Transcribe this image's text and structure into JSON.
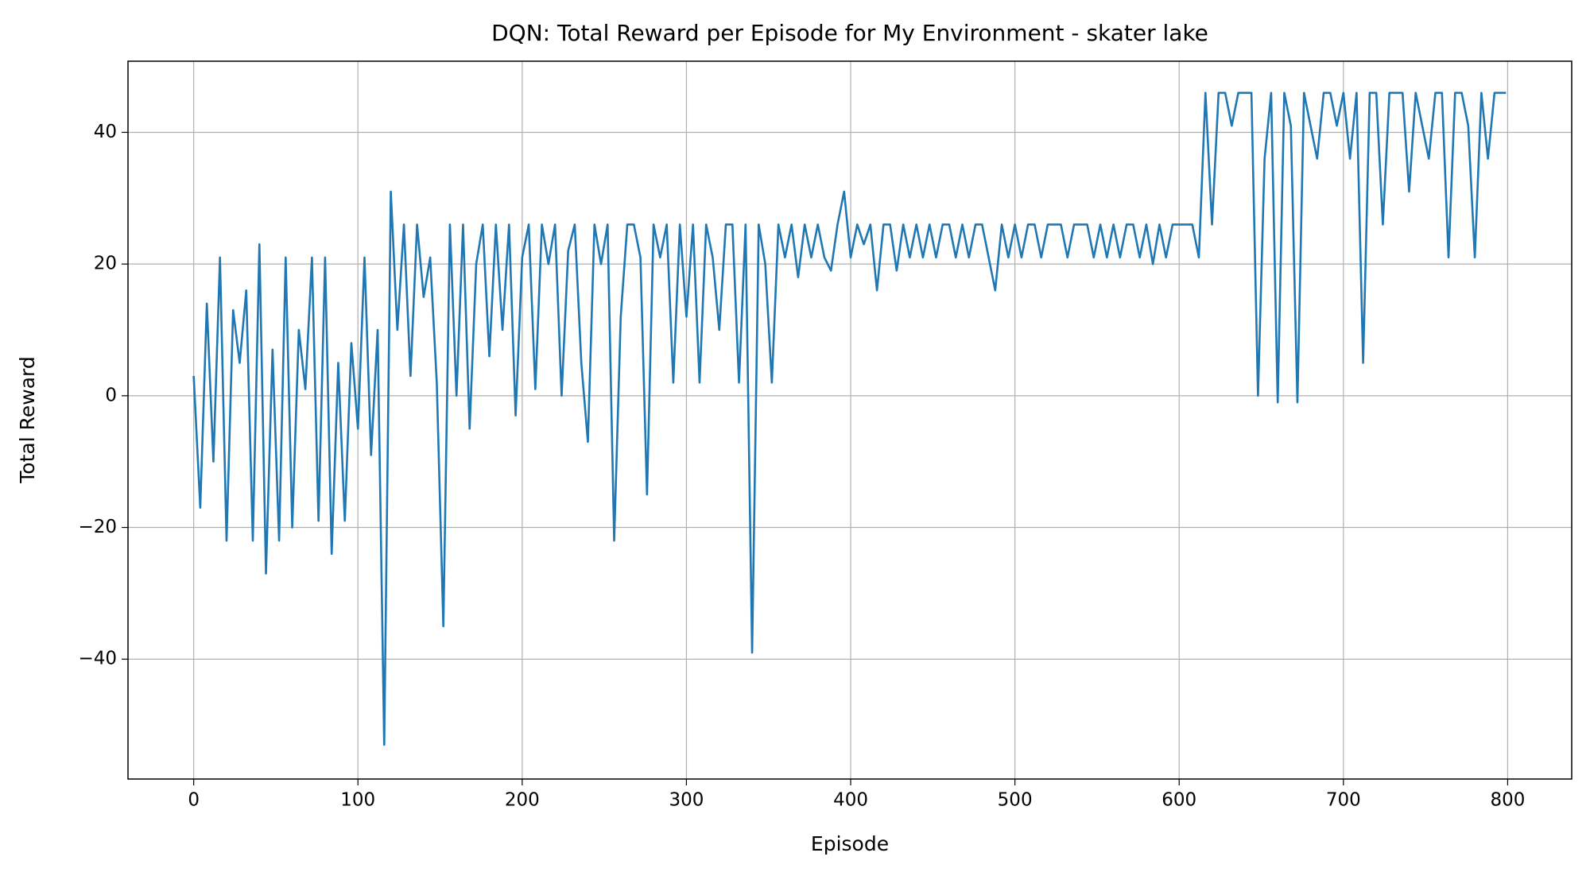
{
  "chart_data": {
    "type": "line",
    "title": "DQN: Total Reward per Episode for My Environment - skater lake",
    "xlabel": "Episode",
    "ylabel": "Total Reward",
    "x": [
      0,
      4,
      8,
      12,
      16,
      20,
      24,
      28,
      32,
      36,
      40,
      44,
      48,
      52,
      56,
      60,
      64,
      68,
      72,
      76,
      80,
      84,
      88,
      92,
      96,
      100,
      104,
      108,
      112,
      116,
      120,
      124,
      128,
      132,
      136,
      140,
      144,
      148,
      152,
      156,
      160,
      164,
      168,
      172,
      176,
      180,
      184,
      188,
      192,
      196,
      200,
      204,
      208,
      212,
      216,
      220,
      224,
      228,
      232,
      236,
      240,
      244,
      248,
      252,
      256,
      260,
      264,
      268,
      272,
      276,
      280,
      284,
      288,
      292,
      296,
      300,
      304,
      308,
      312,
      316,
      320,
      324,
      328,
      332,
      336,
      340,
      344,
      348,
      352,
      356,
      360,
      364,
      368,
      372,
      376,
      380,
      384,
      388,
      392,
      396,
      400,
      404,
      408,
      412,
      416,
      420,
      424,
      428,
      432,
      436,
      440,
      444,
      448,
      452,
      456,
      460,
      464,
      468,
      472,
      476,
      480,
      484,
      488,
      492,
      496,
      500,
      504,
      508,
      512,
      516,
      520,
      524,
      528,
      532,
      536,
      540,
      544,
      548,
      552,
      556,
      560,
      564,
      568,
      572,
      576,
      580,
      584,
      588,
      592,
      596,
      600,
      604,
      608,
      612,
      616,
      620,
      624,
      628,
      632,
      636,
      640,
      644,
      648,
      652,
      656,
      660,
      664,
      668,
      672,
      676,
      680,
      684,
      688,
      692,
      696,
      700,
      704,
      708,
      712,
      716,
      720,
      724,
      728,
      732,
      736,
      740,
      744,
      748,
      752,
      756,
      760,
      764,
      768,
      772,
      776,
      780,
      784,
      788,
      792,
      796,
      799
    ],
    "series": [
      {
        "name": "Total Reward",
        "color": "#1f77b4",
        "values": [
          3,
          -17,
          14,
          -10,
          21,
          -22,
          13,
          5,
          16,
          -22,
          23,
          -27,
          7,
          -22,
          21,
          -20,
          10,
          1,
          21,
          -19,
          21,
          -24,
          5,
          -19,
          8,
          -5,
          21,
          -9,
          10,
          -53,
          31,
          10,
          26,
          3,
          26,
          15,
          21,
          2,
          -35,
          26,
          0,
          26,
          -5,
          20,
          26,
          6,
          26,
          10,
          26,
          -3,
          21,
          26,
          1,
          26,
          20,
          26,
          0,
          22,
          26,
          5,
          -7,
          26,
          20,
          26,
          -22,
          12,
          26,
          26,
          21,
          -15,
          26,
          21,
          26,
          2,
          26,
          12,
          26,
          2,
          26,
          21,
          10,
          26,
          26,
          2,
          26,
          -39,
          26,
          20,
          2,
          26,
          21,
          26,
          18,
          26,
          21,
          26,
          21,
          19,
          26,
          31,
          21,
          26,
          23,
          26,
          16,
          26,
          26,
          19,
          26,
          21,
          26,
          21,
          26,
          21,
          26,
          26,
          21,
          26,
          21,
          26,
          26,
          21,
          16,
          26,
          21,
          26,
          21,
          26,
          26,
          21,
          26,
          26,
          26,
          21,
          26,
          26,
          26,
          21,
          26,
          21,
          26,
          21,
          26,
          26,
          21,
          26,
          20,
          26,
          21,
          26,
          26,
          26,
          26,
          21,
          46,
          26,
          46,
          46,
          41,
          46,
          46,
          46,
          0,
          36,
          46,
          -1,
          46,
          41,
          -1,
          46,
          41,
          36,
          46,
          46,
          41,
          46,
          36,
          46,
          5,
          46,
          46,
          26,
          46,
          46,
          46,
          31,
          46,
          41,
          36,
          46,
          46,
          21,
          46,
          46,
          41,
          21,
          46,
          36,
          46,
          46,
          46
        ]
      }
    ],
    "xlim": [
      -40,
      839
    ],
    "ylim": [
      -58.2,
      50.8
    ],
    "xticks": [
      0,
      100,
      200,
      300,
      400,
      500,
      600,
      700,
      800
    ],
    "yticks": [
      {
        "value": -40,
        "label": "−40"
      },
      {
        "value": -20,
        "label": "−20"
      },
      0,
      20,
      40
    ],
    "grid": true
  }
}
